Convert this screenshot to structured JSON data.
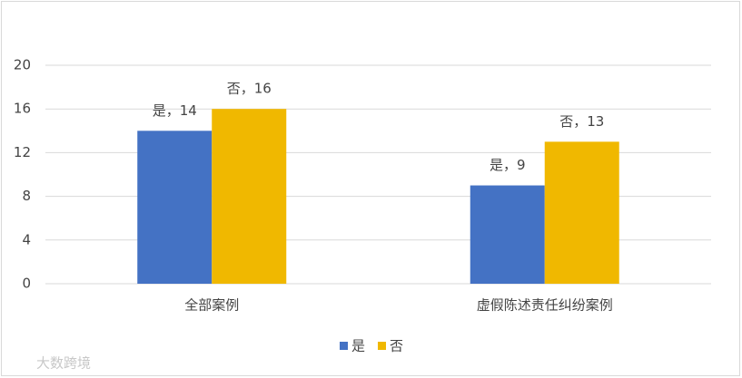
{
  "chart_data": {
    "type": "bar",
    "categories": [
      "全部案例",
      "虚假陈述责任纠纷案例"
    ],
    "series": [
      {
        "name": "是",
        "color": "#4472c4",
        "values": [
          14,
          9
        ],
        "value_labels": [
          "是，14",
          "是，9"
        ]
      },
      {
        "name": "否",
        "color": "#f0b800",
        "values": [
          16,
          13
        ],
        "value_labels": [
          "否，16",
          "否，13"
        ]
      }
    ],
    "ylim": [
      0,
      20
    ],
    "yticks": [
      0,
      4,
      8,
      12,
      16,
      20
    ],
    "grid": true,
    "legend": "bottom",
    "watermark": "大数跨境"
  }
}
